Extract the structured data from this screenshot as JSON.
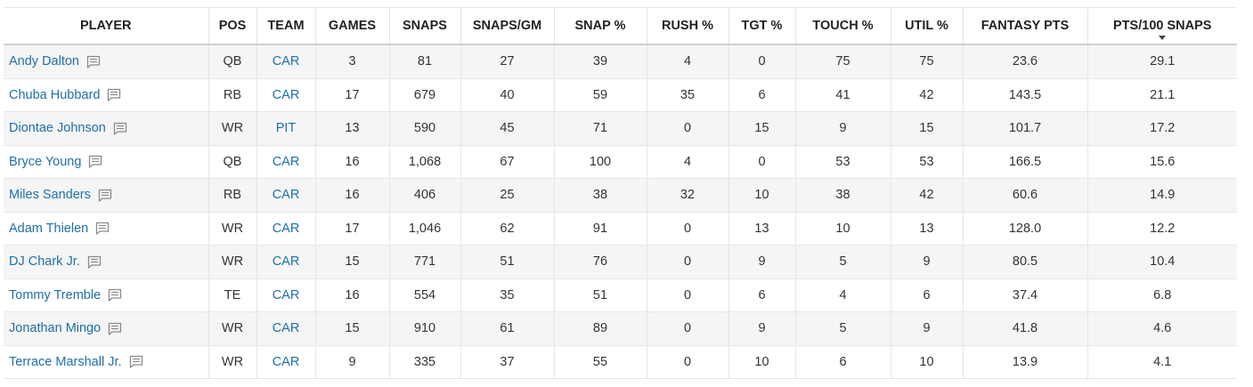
{
  "table": {
    "headers": [
      "PLAYER",
      "POS",
      "TEAM",
      "GAMES",
      "SNAPS",
      "SNAPS/GM",
      "SNAP %",
      "RUSH %",
      "TGT %",
      "TOUCH %",
      "UTIL %",
      "FANTASY PTS",
      "PTS/100 SNAPS"
    ],
    "sorted_column": "PTS/100 SNAPS",
    "sort_direction": "descending",
    "rows": [
      {
        "player": "Andy Dalton",
        "pos": "QB",
        "team": "CAR",
        "games": "3",
        "snaps": "81",
        "snaps_gm": "27",
        "snap_pct": "39",
        "rush_pct": "4",
        "tgt_pct": "0",
        "touch_pct": "75",
        "util_pct": "75",
        "fantasy_pts": "23.6",
        "pts_100": "29.1"
      },
      {
        "player": "Chuba Hubbard",
        "pos": "RB",
        "team": "CAR",
        "games": "17",
        "snaps": "679",
        "snaps_gm": "40",
        "snap_pct": "59",
        "rush_pct": "35",
        "tgt_pct": "6",
        "touch_pct": "41",
        "util_pct": "42",
        "fantasy_pts": "143.5",
        "pts_100": "21.1"
      },
      {
        "player": "Diontae Johnson",
        "pos": "WR",
        "team": "PIT",
        "games": "13",
        "snaps": "590",
        "snaps_gm": "45",
        "snap_pct": "71",
        "rush_pct": "0",
        "tgt_pct": "15",
        "touch_pct": "9",
        "util_pct": "15",
        "fantasy_pts": "101.7",
        "pts_100": "17.2"
      },
      {
        "player": "Bryce Young",
        "pos": "QB",
        "team": "CAR",
        "games": "16",
        "snaps": "1,068",
        "snaps_gm": "67",
        "snap_pct": "100",
        "rush_pct": "4",
        "tgt_pct": "0",
        "touch_pct": "53",
        "util_pct": "53",
        "fantasy_pts": "166.5",
        "pts_100": "15.6"
      },
      {
        "player": "Miles Sanders",
        "pos": "RB",
        "team": "CAR",
        "games": "16",
        "snaps": "406",
        "snaps_gm": "25",
        "snap_pct": "38",
        "rush_pct": "32",
        "tgt_pct": "10",
        "touch_pct": "38",
        "util_pct": "42",
        "fantasy_pts": "60.6",
        "pts_100": "14.9"
      },
      {
        "player": "Adam Thielen",
        "pos": "WR",
        "team": "CAR",
        "games": "17",
        "snaps": "1,046",
        "snaps_gm": "62",
        "snap_pct": "91",
        "rush_pct": "0",
        "tgt_pct": "13",
        "touch_pct": "10",
        "util_pct": "13",
        "fantasy_pts": "128.0",
        "pts_100": "12.2"
      },
      {
        "player": "DJ Chark Jr.",
        "pos": "WR",
        "team": "CAR",
        "games": "15",
        "snaps": "771",
        "snaps_gm": "51",
        "snap_pct": "76",
        "rush_pct": "0",
        "tgt_pct": "9",
        "touch_pct": "5",
        "util_pct": "9",
        "fantasy_pts": "80.5",
        "pts_100": "10.4"
      },
      {
        "player": "Tommy Tremble",
        "pos": "TE",
        "team": "CAR",
        "games": "16",
        "snaps": "554",
        "snaps_gm": "35",
        "snap_pct": "51",
        "rush_pct": "0",
        "tgt_pct": "6",
        "touch_pct": "4",
        "util_pct": "6",
        "fantasy_pts": "37.4",
        "pts_100": "6.8"
      },
      {
        "player": "Jonathan Mingo",
        "pos": "WR",
        "team": "CAR",
        "games": "15",
        "snaps": "910",
        "snaps_gm": "61",
        "snap_pct": "89",
        "rush_pct": "0",
        "tgt_pct": "9",
        "touch_pct": "5",
        "util_pct": "9",
        "fantasy_pts": "41.8",
        "pts_100": "4.6"
      },
      {
        "player": "Terrace Marshall Jr.",
        "pos": "WR",
        "team": "CAR",
        "games": "9",
        "snaps": "335",
        "snaps_gm": "37",
        "snap_pct": "55",
        "rush_pct": "0",
        "tgt_pct": "10",
        "touch_pct": "6",
        "util_pct": "10",
        "fantasy_pts": "13.9",
        "pts_100": "4.1"
      }
    ]
  },
  "icons": {
    "note": "comment-note-icon",
    "sort": "sort-descending-icon"
  },
  "colors": {
    "link": "#1f6fa8",
    "row_alt": "#f5f5f5",
    "header_text": "#222222"
  }
}
